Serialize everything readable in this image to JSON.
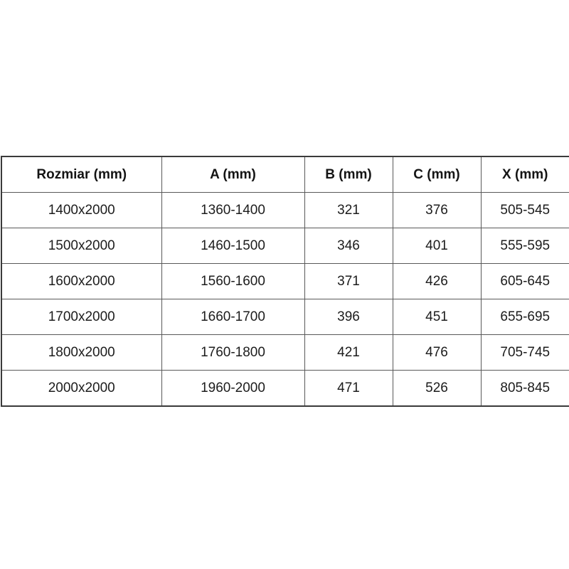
{
  "chart_data": {
    "type": "table",
    "title": "",
    "columns": [
      "Rozmiar (mm)",
      "A (mm)",
      "B (mm)",
      "C (mm)",
      "X (mm)"
    ],
    "rows": [
      [
        "1400x2000",
        "1360-1400",
        "321",
        "376",
        "505-545"
      ],
      [
        "1500x2000",
        "1460-1500",
        "346",
        "401",
        "555-595"
      ],
      [
        "1600x2000",
        "1560-1600",
        "371",
        "426",
        "605-645"
      ],
      [
        "1700x2000",
        "1660-1700",
        "396",
        "451",
        "655-695"
      ],
      [
        "1800x2000",
        "1760-1800",
        "421",
        "476",
        "705-745"
      ],
      [
        "2000x2000",
        "1960-2000",
        "471",
        "526",
        "805-845"
      ]
    ],
    "colors": {
      "background": "#ffffff",
      "text": "#1c1c1c",
      "border_inner": "#595959",
      "border_outer": "#3a3a3a"
    }
  }
}
